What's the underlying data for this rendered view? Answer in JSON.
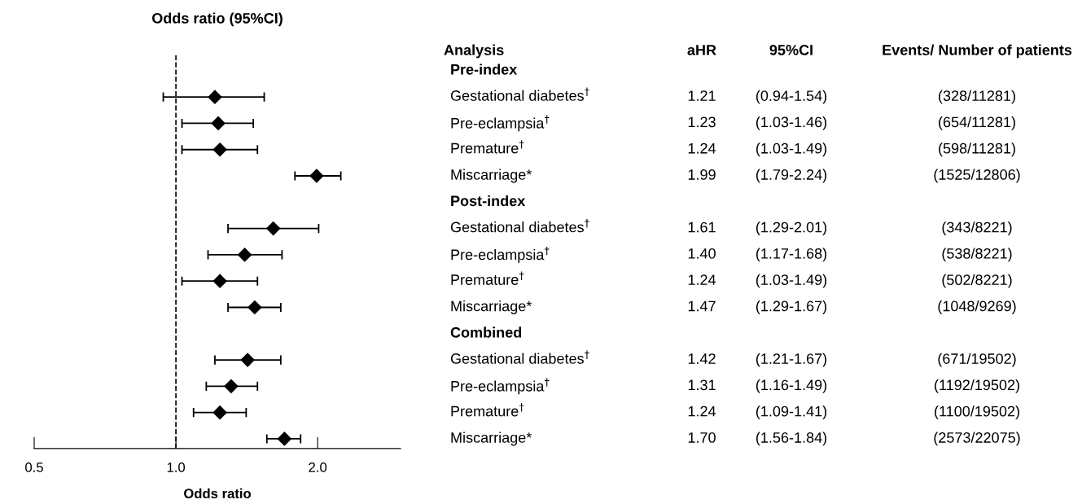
{
  "chart_data": {
    "type": "scatter",
    "orientation": "horizontal",
    "title": "Odds ratio (95%CI)",
    "xlabel": "Odds ratio",
    "categories": [
      "Pre-index",
      "Gestational diabetes$^{†}$",
      "Pre-eclampsia$^{†}$",
      "Premature$^{†}$",
      "Miscarriage*",
      "Post-index",
      "Gestational diabetes$^{†}$",
      "Pre-eclampsia$^{†}$",
      "Premature$^{†}$",
      "Miscarriage*",
      "Combined",
      "Gestational diabetes$^{†}$",
      "Pre-eclampsia$^{†}$",
      "Premature$^{†}$",
      "Miscarriage*"
    ],
    "series": [
      {
        "color": "#000000",
        "values": [
          null,
          1.21,
          1.23,
          1.24,
          1.99,
          null,
          1.61,
          1.4,
          1.24,
          1.47,
          null,
          1.42,
          1.31,
          1.24,
          1.7
        ],
        "errors": [
          null,
          [
            0.94,
            1.54
          ],
          [
            1.03,
            1.46
          ],
          [
            1.03,
            1.49
          ],
          [
            1.79,
            2.24
          ],
          null,
          [
            1.29,
            2.01
          ],
          [
            1.17,
            1.68
          ],
          [
            1.03,
            1.49
          ],
          [
            1.29,
            1.67
          ],
          null,
          [
            1.21,
            1.67
          ],
          [
            1.16,
            1.49
          ],
          [
            1.09,
            1.41
          ],
          [
            1.56,
            1.84
          ]
        ],
        "value_labels": [
          null,
          "1.21",
          "1.23",
          "1.24",
          "1.99",
          null,
          "1.61",
          "1.40",
          "1.24",
          "1.47",
          null,
          "1.42",
          "1.31",
          "1.24",
          "1.70"
        ]
      }
    ],
    "annotations": [
      "Analysis",
      "aHR",
      "95%CI",
      "Events/ Number of patients",
      "(0.94-1.54)",
      "(1.03-1.46)",
      "(1.03-1.49)",
      "(1.79-2.24)",
      "(1.29-2.01)",
      "(1.17-1.68)",
      "(1.03-1.49)",
      "(1.29-1.67)",
      "(1.21-1.67)",
      "(1.16-1.49)",
      "(1.09-1.41)",
      "(1.56-1.84)",
      "(328/11281)",
      "(654/11281)",
      "(598/11281)",
      "(1525/12806)",
      "(343/8221)",
      "(538/8221)",
      "(502/8221)",
      "(1048/9269)",
      "(671/19502)",
      "(1192/19502)",
      "(1100/19502)",
      "(2573/22075)"
    ],
    "log": "x",
    "xlim": [
      0.5,
      3.0
    ],
    "xticks": [
      0.5,
      {
        "value": 1,
        "label": "1.0"
      },
      {
        "value": 2,
        "label": "2.0"
      }
    ],
    "ref_lines": [
      {
        "axis": "x",
        "value": 1,
        "color": "#000000",
        "line_style": "dashed"
      }
    ],
    "marker": "diamond",
    "grid": false,
    "legend": false
  }
}
